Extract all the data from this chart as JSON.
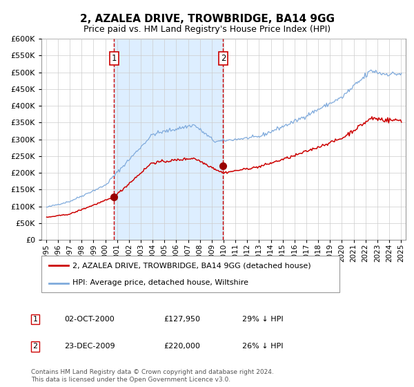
{
  "title": "2, AZALEA DRIVE, TROWBRIDGE, BA14 9GG",
  "subtitle": "Price paid vs. HM Land Registry's House Price Index (HPI)",
  "sale1_date": "02-OCT-2000",
  "sale1_price": 127950,
  "sale1_label": "1",
  "sale1_year": 2000.75,
  "sale2_date": "23-DEC-2009",
  "sale2_price": 220000,
  "sale2_label": "2",
  "sale2_year": 2009.97,
  "legend_property": "2, AZALEA DRIVE, TROWBRIDGE, BA14 9GG (detached house)",
  "legend_hpi": "HPI: Average price, detached house, Wiltshire",
  "footnote1": "Contains HM Land Registry data © Crown copyright and database right 2024.",
  "footnote2": "This data is licensed under the Open Government Licence v3.0.",
  "hpi_color": "#7faadc",
  "property_color": "#cc0000",
  "marker_color": "#990000",
  "vline_color": "#cc0000",
  "shade_color": "#ddeeff",
  "grid_color": "#cccccc",
  "ylim": [
    0,
    600000
  ],
  "yticks": [
    0,
    50000,
    100000,
    150000,
    200000,
    250000,
    300000,
    350000,
    400000,
    450000,
    500000,
    550000,
    600000
  ],
  "xlim_left": 1994.6,
  "xlim_right": 2025.4,
  "xtick_start": 1995,
  "xtick_end": 2025
}
